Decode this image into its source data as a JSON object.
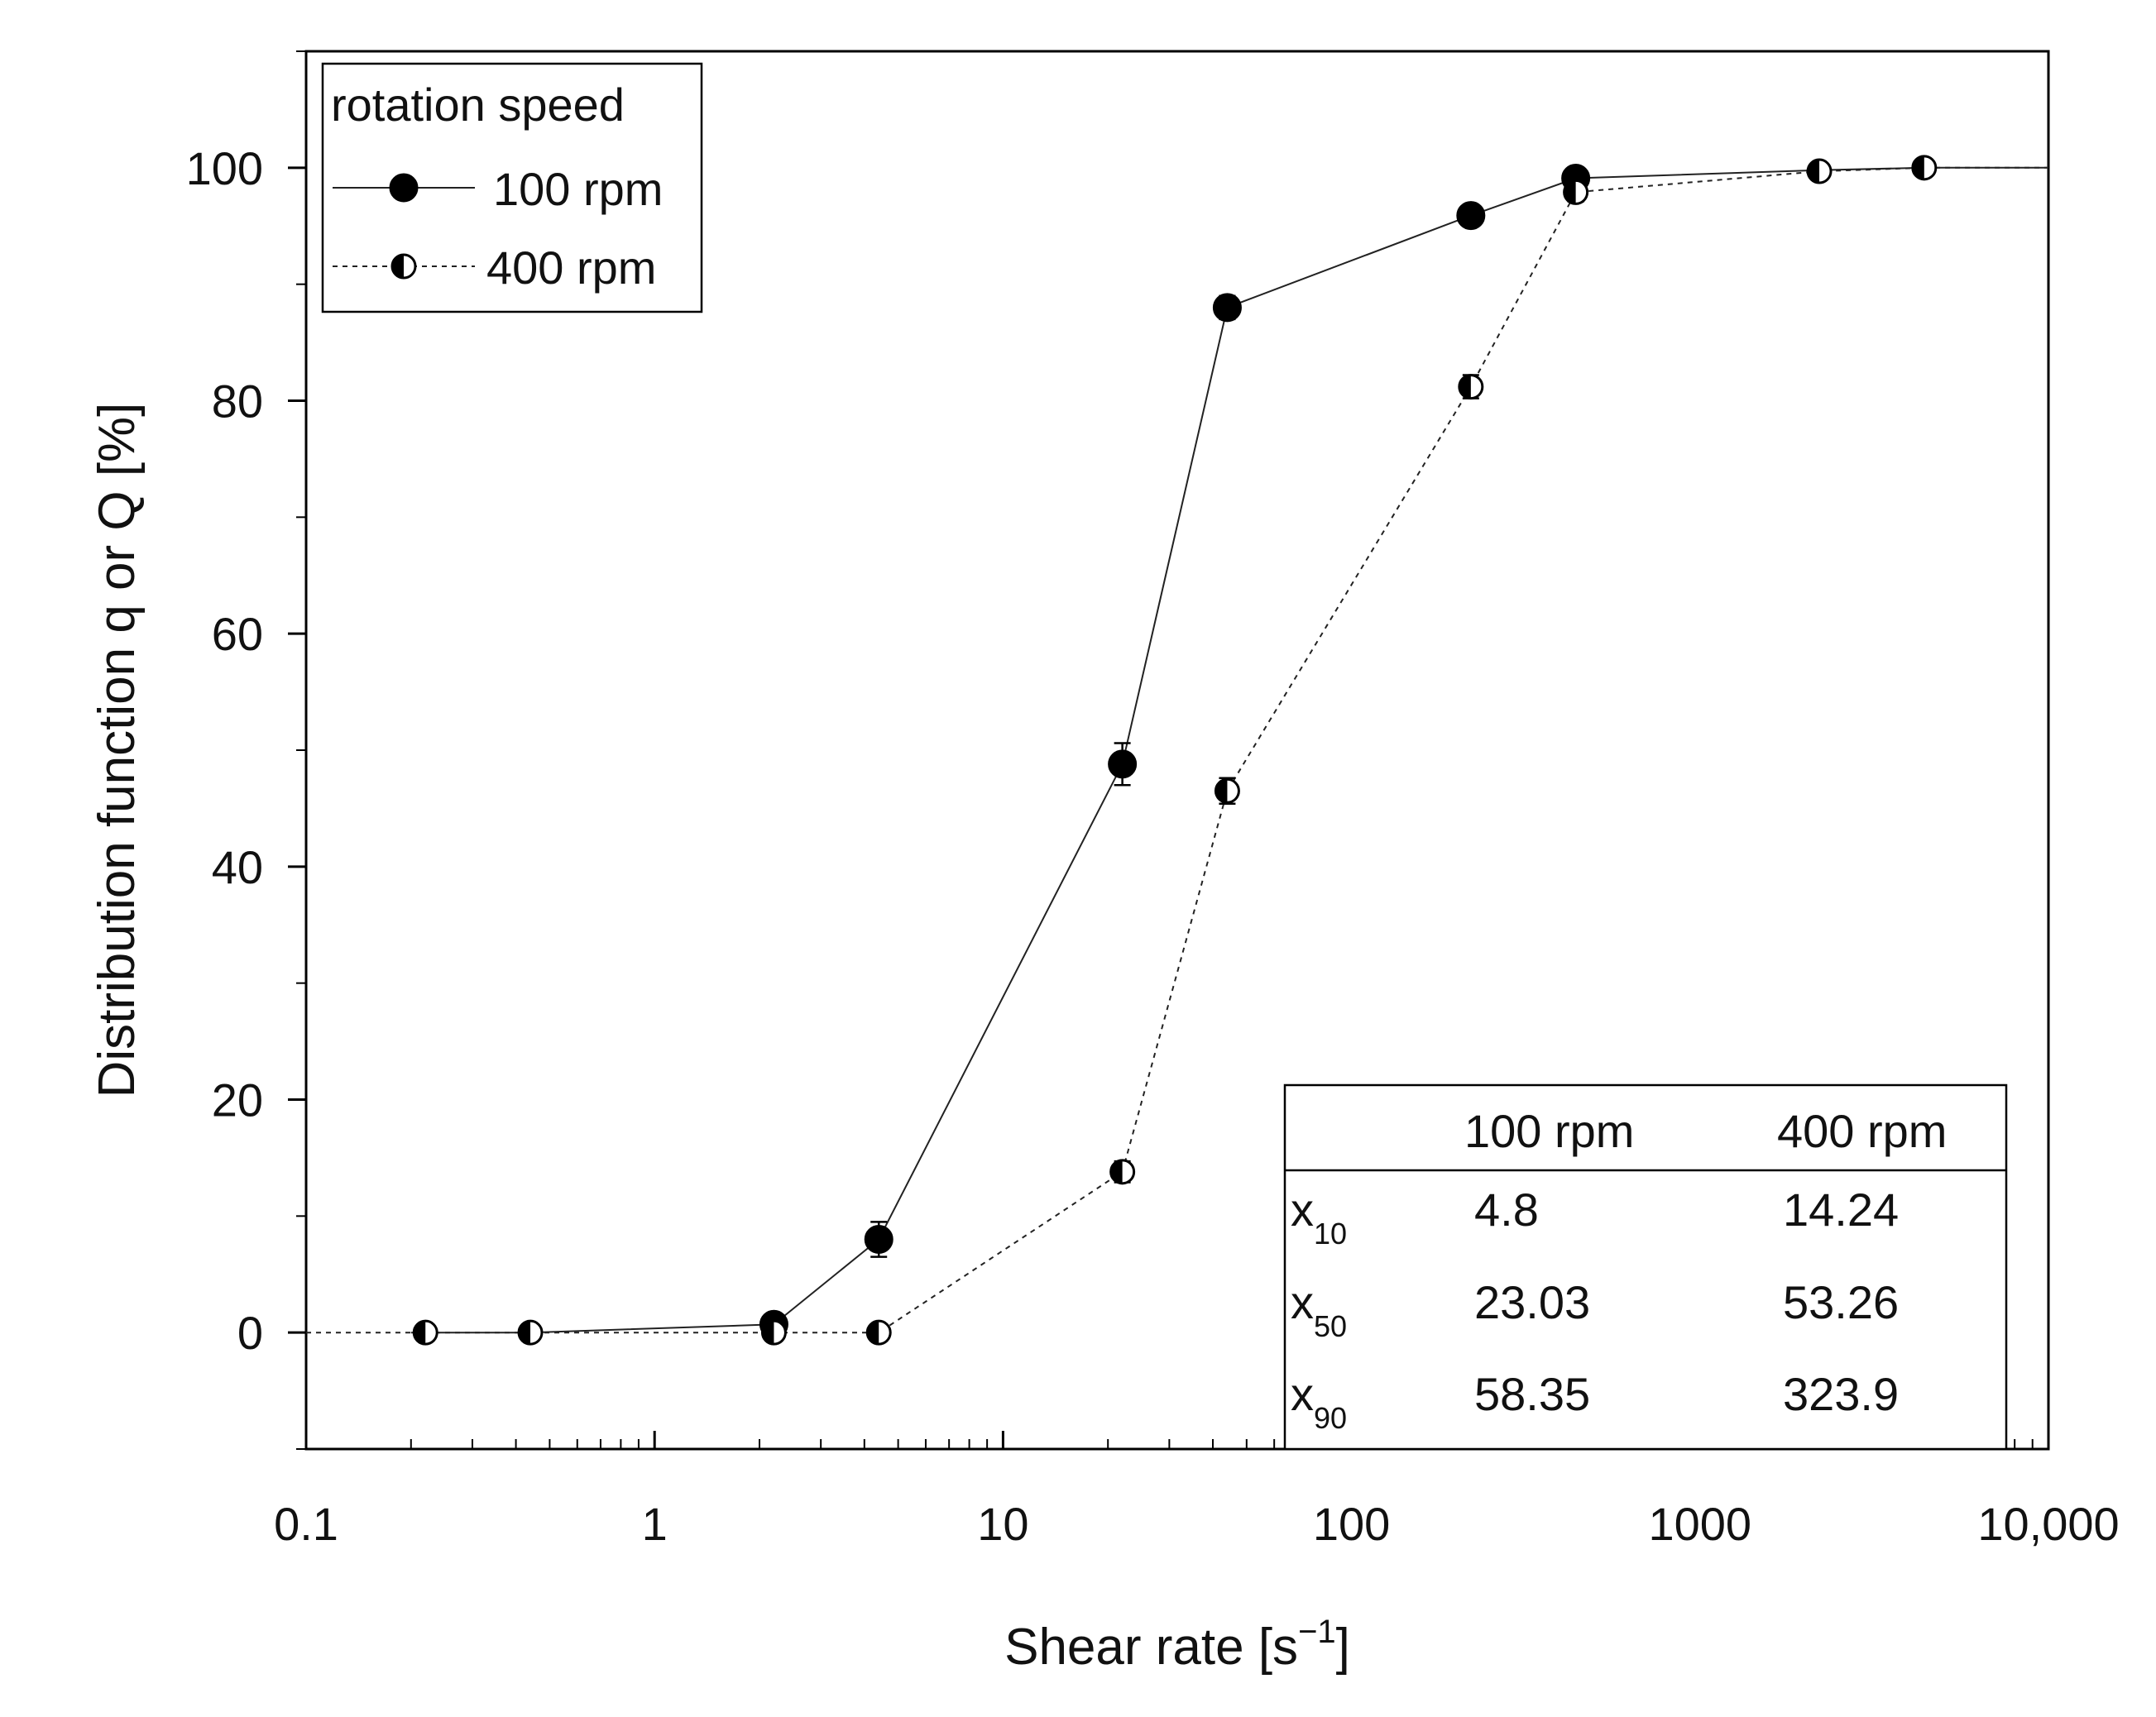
{
  "chart_data": {
    "type": "line",
    "xscale": "log",
    "xlabel": "Shear rate [s",
    "xlabel_sup": "−1",
    "xlabel_end": "]",
    "ylabel": "Distribution function q or Q [%]",
    "xlim": [
      0.1,
      10000
    ],
    "ylim": [
      -10,
      110
    ],
    "x_ticks": [
      0.1,
      1,
      10,
      100,
      1000,
      10000
    ],
    "x_tick_labels": [
      "0.1",
      "1",
      "10",
      "100",
      "1000",
      "10,000"
    ],
    "y_ticks": [
      0,
      20,
      40,
      60,
      80,
      100
    ],
    "y_tick_labels": [
      "0",
      "20",
      "40",
      "60",
      "80",
      "100"
    ],
    "legend": {
      "title": "rotation speed",
      "position": "top-left",
      "entries": [
        "100 rpm",
        "400 rpm"
      ]
    },
    "series": [
      {
        "name": "100 rpm",
        "marker": "filled-circle",
        "line": "solid",
        "x": [
          0.2,
          0.44,
          2.2,
          4.4,
          22,
          44,
          220,
          440,
          2200,
          4400,
          10000
        ],
        "y": [
          0,
          0,
          0.7,
          8.0,
          48.8,
          88.0,
          95.9,
          99.1,
          99.8,
          100,
          100
        ],
        "err": [
          0.3,
          0.3,
          0.8,
          1.5,
          1.8,
          1.0,
          0.9,
          0.6,
          0.4,
          0.2,
          0
        ],
        "show_marker": [
          false,
          false,
          true,
          true,
          true,
          true,
          true,
          true,
          false,
          false,
          false
        ]
      },
      {
        "name": "400 rpm",
        "marker": "half-filled-circle",
        "line": "dotted",
        "x": [
          0.1,
          0.22,
          0.44,
          2.2,
          4.4,
          22,
          44,
          220,
          440,
          2200,
          4400,
          10000
        ],
        "y": [
          0,
          0,
          0,
          0,
          0,
          13.8,
          46.5,
          81.2,
          97.9,
          99.7,
          100,
          100
        ],
        "err": [
          0,
          0.3,
          0.3,
          0.4,
          0.3,
          0.9,
          1.1,
          1.0,
          0.8,
          0.4,
          0.3,
          0
        ],
        "show_marker": [
          false,
          true,
          true,
          true,
          true,
          true,
          true,
          true,
          true,
          true,
          true,
          false
        ]
      }
    ],
    "table": {
      "position": "bottom-right",
      "header": [
        "",
        "100 rpm",
        "400 rpm"
      ],
      "rows": [
        {
          "label": "x",
          "sub": "10",
          "values": [
            "4.8",
            "14.24"
          ]
        },
        {
          "label": "x",
          "sub": "50",
          "values": [
            "23.03",
            "53.26"
          ]
        },
        {
          "label": "x",
          "sub": "90",
          "values": [
            "58.35",
            "323.9"
          ]
        }
      ]
    }
  }
}
